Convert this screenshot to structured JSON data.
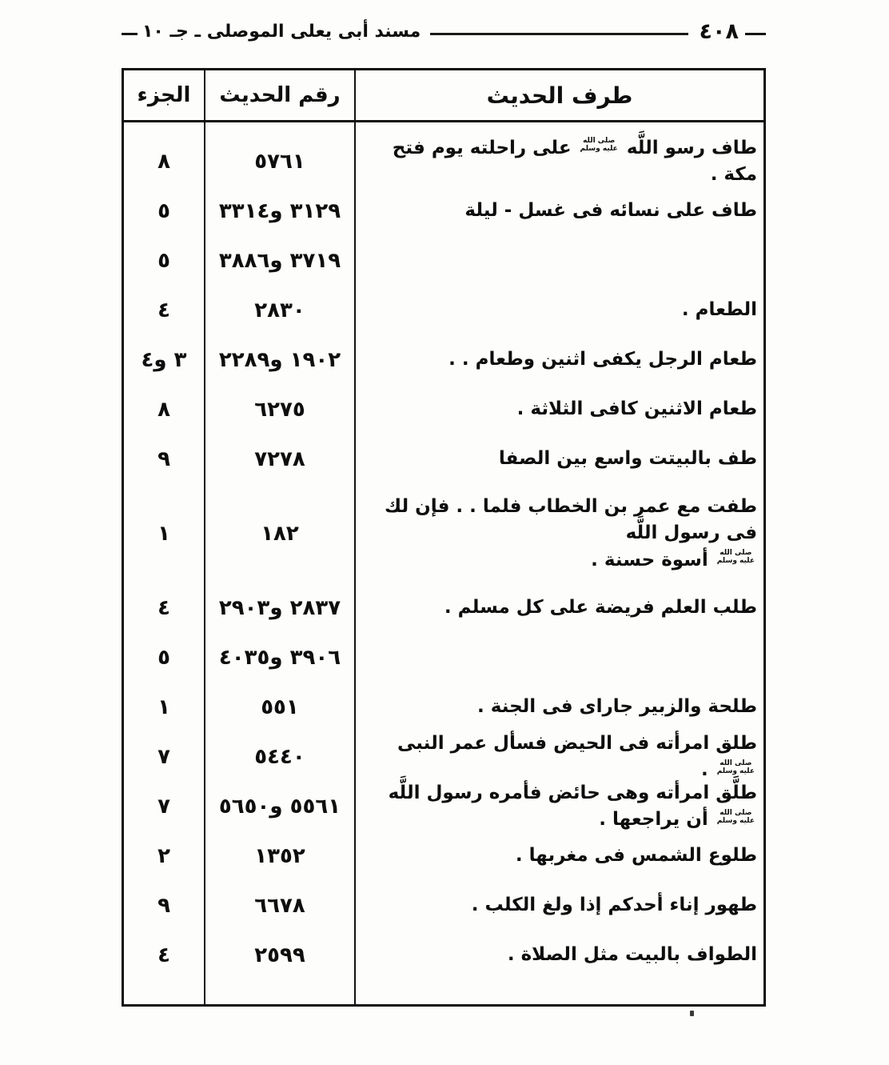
{
  "page": {
    "header": {
      "title": "مسند أبى يعلى الموصلى ـ جـ ١٠",
      "page_number": "٤٠٨"
    }
  },
  "honorific": {
    "line1": "صلى الله",
    "line2": "عليه وسلم"
  },
  "table": {
    "columns": {
      "juz": "الجزء",
      "number": "رقم الحديث",
      "text": "طرف الحديث"
    },
    "rows": [
      {
        "juz": "٨",
        "num": "٥٧٦١",
        "text": "طاف رسو اللَّه ﷺ على راحلته يوم فتح مكة ."
      },
      {
        "juz": "٥",
        "num": "٣١٢٩ و٣٣١٤",
        "text": "طاف على نسائه فى غسل - ليلة"
      },
      {
        "juz": "٥",
        "num": "٣٧١٩ و٣٨٨٦",
        "text": ""
      },
      {
        "juz": "٤",
        "num": "٢٨٣٠",
        "text": "الطعام ."
      },
      {
        "juz": "٣ و٤",
        "num": "١٩٠٢ و٢٢٨٩",
        "text": "طعام الرجل يكفى اثنين وطعام . ."
      },
      {
        "juz": "٨",
        "num": "٦٢٧٥",
        "text": "طعام الاثنين كافى الثلاثة ."
      },
      {
        "juz": "٩",
        "num": "٧٢٧٨",
        "text": "طف بالبيتت واسع بين الصفا"
      },
      {
        "juz": "١",
        "num": "١٨٢",
        "text": "طفت مع عمر بن الخطاب فلما . . فإن لك فى رسول اللَّه\nﷺ أسوة حسنة .",
        "tall": true
      },
      {
        "juz": "٤",
        "num": "٢٨٣٧ و٢٩٠٣",
        "text": "طلب العلم فريضة على كل مسلم ."
      },
      {
        "juz": "٥",
        "num": "٣٩٠٦ و٤٠٣٥",
        "text": ""
      },
      {
        "juz": "١",
        "num": "٥٥١",
        "text": "طلحة والزبير جاراى فى الجنة ."
      },
      {
        "juz": "٧",
        "num": "٥٤٤٠",
        "text": "طلق امرأته فى الحيض فسأل عمر النبى ﷺ ."
      },
      {
        "juz": "٧",
        "num": "٥٥٦١ و٥٦٥٠",
        "text": "طلَّق امرأته وهى حائض فأمره رسول اللَّه ﷺ أن يراجعها ."
      },
      {
        "juz": "٢",
        "num": "١٣٥٢",
        "text": "طلوع الشمس فى مغربها ."
      },
      {
        "juz": "٩",
        "num": "٦٦٧٨",
        "text": "طهور إناء أحدكم إذا ولغ الكلب ."
      },
      {
        "juz": "٤",
        "num": "٢٥٩٩",
        "text": "الطواف بالبيت مثل الصلاة ."
      }
    ]
  }
}
